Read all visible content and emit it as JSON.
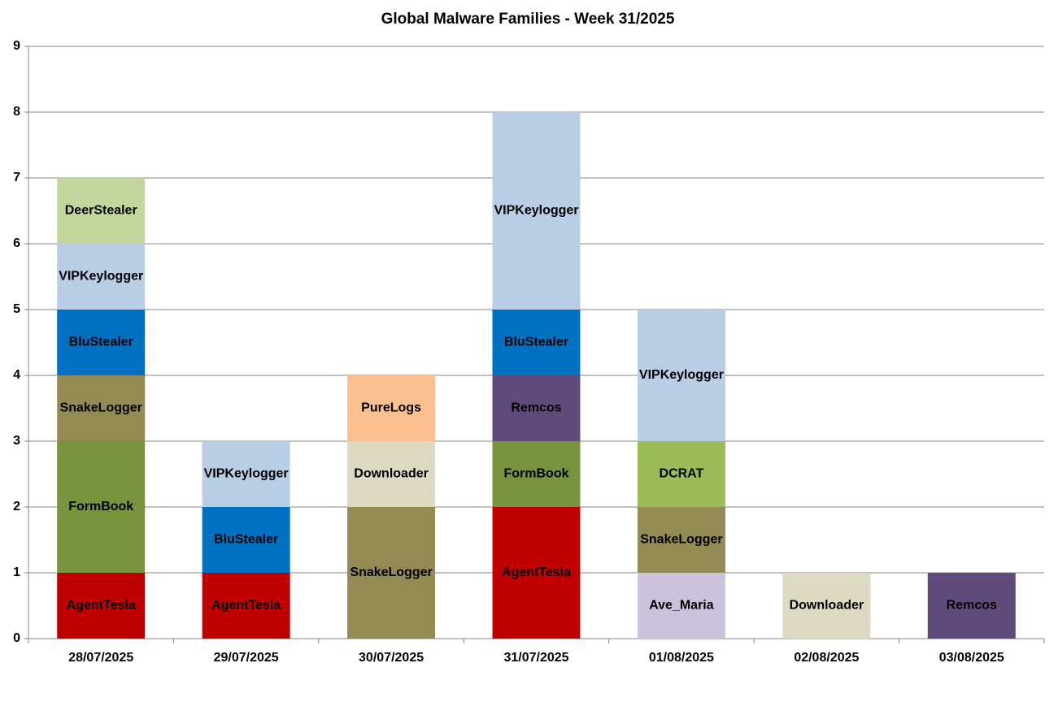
{
  "chart_data": {
    "type": "bar",
    "title": "Global Malware Families - Week 31/2025",
    "categories": [
      "28/07/2025",
      "29/07/2025",
      "30/07/2025",
      "31/07/2025",
      "01/08/2025",
      "02/08/2025",
      "03/08/2025"
    ],
    "segments": [
      [
        {
          "name": "AgentTesla",
          "value": 1,
          "color": "#c00000"
        },
        {
          "name": "FormBook",
          "value": 2,
          "color": "#77933c"
        },
        {
          "name": "SnakeLogger",
          "value": 1,
          "color": "#948a54"
        },
        {
          "name": "BluStealer",
          "value": 1,
          "color": "#0070c0"
        },
        {
          "name": "VIPKeylogger",
          "value": 1,
          "color": "#b9cde5"
        },
        {
          "name": "DeerStealer",
          "value": 1,
          "color": "#c3d69b"
        }
      ],
      [
        {
          "name": "AgentTesla",
          "value": 1,
          "color": "#c00000"
        },
        {
          "name": "BluStealer",
          "value": 1,
          "color": "#0070c0"
        },
        {
          "name": "VIPKeylogger",
          "value": 1,
          "color": "#b9cde5"
        }
      ],
      [
        {
          "name": "SnakeLogger",
          "value": 2,
          "color": "#948a54"
        },
        {
          "name": "Downloader",
          "value": 1,
          "color": "#ddd9c3"
        },
        {
          "name": "PureLogs",
          "value": 1,
          "color": "#fac090"
        }
      ],
      [
        {
          "name": "AgentTesla",
          "value": 2,
          "color": "#c00000"
        },
        {
          "name": "FormBook",
          "value": 1,
          "color": "#77933c"
        },
        {
          "name": "Remcos",
          "value": 1,
          "color": "#604a7b"
        },
        {
          "name": "BluStealer",
          "value": 1,
          "color": "#0070c0"
        },
        {
          "name": "VIPKeylogger",
          "value": 3,
          "color": "#b9cde5"
        }
      ],
      [
        {
          "name": "Ave_Maria",
          "value": 1,
          "color": "#ccc1da"
        },
        {
          "name": "SnakeLogger",
          "value": 1,
          "color": "#948a54"
        },
        {
          "name": "DCRAT",
          "value": 1,
          "color": "#9bbb59"
        },
        {
          "name": "VIPKeylogger",
          "value": 2,
          "color": "#b9cde5"
        }
      ],
      [
        {
          "name": "Downloader",
          "value": 1,
          "color": "#ddd9c3"
        }
      ],
      [
        {
          "name": "Remcos",
          "value": 1,
          "color": "#604a7b"
        }
      ]
    ],
    "ylim": [
      0,
      9
    ],
    "yticks": [
      0,
      1,
      2,
      3,
      4,
      5,
      6,
      7,
      8,
      9
    ],
    "grid": true
  }
}
